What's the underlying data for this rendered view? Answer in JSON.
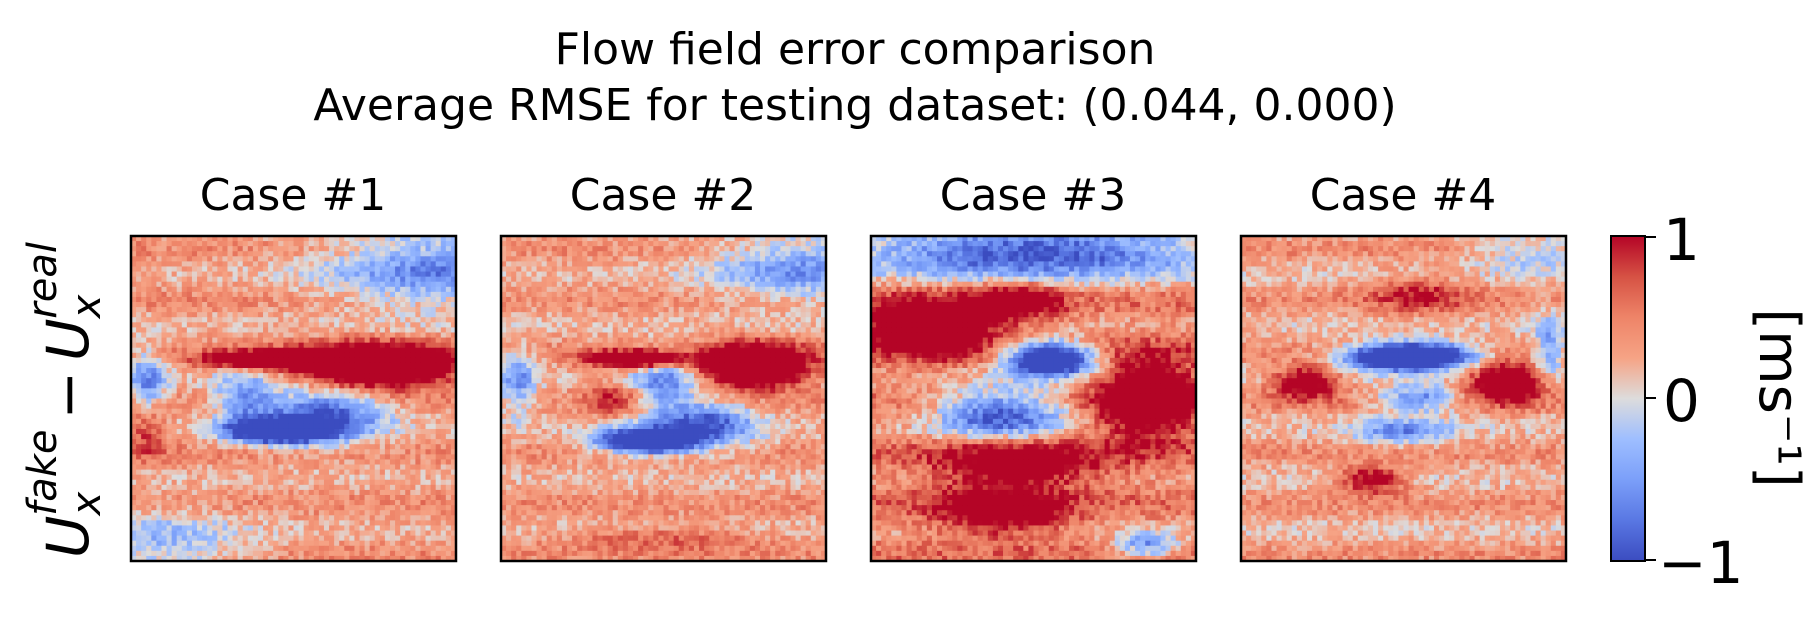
{
  "title_line1": "Flow field error comparison",
  "title_line2": "Average RMSE for testing dataset: (0.044, 0.000)",
  "row_label": {
    "main": "U",
    "sub": "x",
    "sup_fake": "fake",
    "sup_real": "real",
    "minus": "−"
  },
  "colorbar": {
    "label": "[ms⁻¹]",
    "ticks": [
      "1",
      "0",
      "−1"
    ],
    "colors": {
      "low": "#3b4cc0",
      "mid": "#dddcdc",
      "high": "#b40426"
    }
  },
  "chart_data": {
    "type": "heatmap",
    "colormap": "coolwarm",
    "vmin": -1,
    "vmax": 1,
    "grid": false,
    "panels": [
      {
        "title": "Case #1"
      },
      {
        "title": "Case #2"
      },
      {
        "title": "Case #3"
      },
      {
        "title": "Case #4"
      }
    ]
  }
}
